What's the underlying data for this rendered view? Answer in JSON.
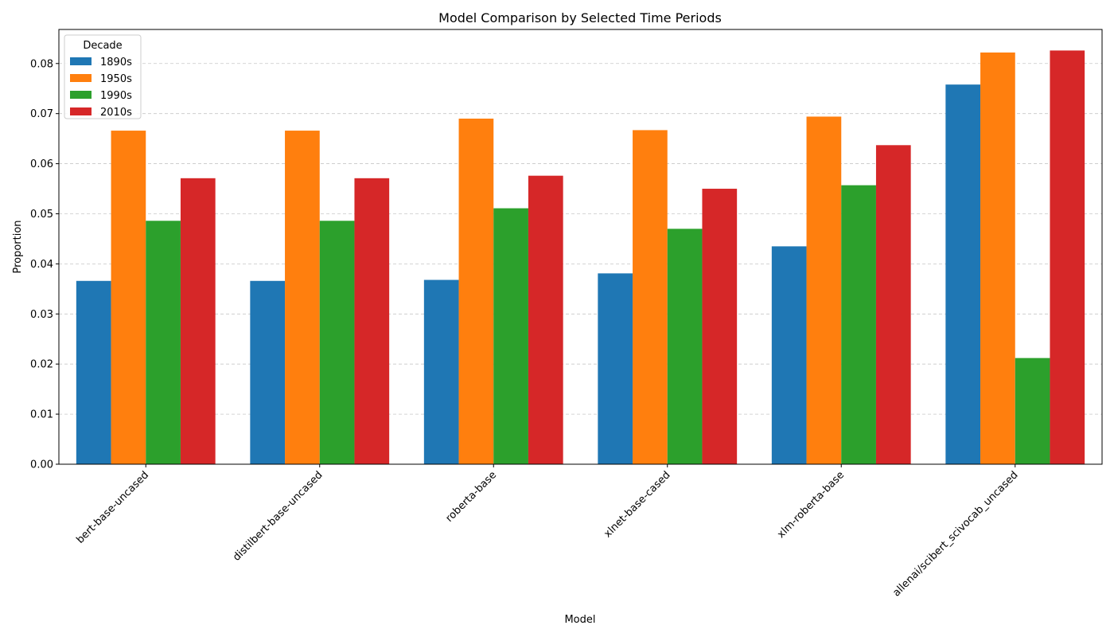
{
  "chart_data": {
    "type": "bar",
    "title": "Model Comparison by Selected Time Periods",
    "xlabel": "Model",
    "ylabel": "Proportion",
    "categories": [
      "bert-base-uncased",
      "distilbert-base-uncased",
      "roberta-base",
      "xlnet-base-cased",
      "xlm-roberta-base",
      "allenai/scibert_scivocab_uncased"
    ],
    "series": [
      {
        "name": "1890s",
        "color": "#1f77b4",
        "values": [
          0.0366,
          0.0366,
          0.0368,
          0.0381,
          0.0435,
          0.0758
        ]
      },
      {
        "name": "1950s",
        "color": "#ff7f0e",
        "values": [
          0.0666,
          0.0666,
          0.069,
          0.0667,
          0.0694,
          0.0822
        ]
      },
      {
        "name": "1990s",
        "color": "#2ca02c",
        "values": [
          0.0486,
          0.0486,
          0.0511,
          0.047,
          0.0557,
          0.0212
        ]
      },
      {
        "name": "2010s",
        "color": "#d62728",
        "values": [
          0.0571,
          0.0571,
          0.0576,
          0.055,
          0.0637,
          0.0826
        ]
      }
    ],
    "ylim": [
      0,
      0.0868
    ],
    "yticks": [
      "0.00",
      "0.01",
      "0.02",
      "0.03",
      "0.04",
      "0.05",
      "0.06",
      "0.07",
      "0.08"
    ],
    "grid": "y-dashed",
    "legend": {
      "title": "Decade",
      "placement": "top-left"
    }
  }
}
